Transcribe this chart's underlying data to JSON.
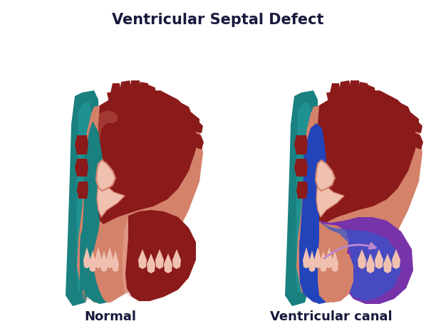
{
  "title": "Ventricular Septal Defect",
  "label_normal": "Normal",
  "label_defect": "Ventricular canal",
  "bg_color": "#ffffff",
  "title_color": "#1a1a3e",
  "label_color": "#1a1a3e",
  "title_fontsize": 15,
  "label_fontsize": 13,
  "c_teal": "#1a8080",
  "c_teal_dark": "#156868",
  "c_teal_light": "#2aacac",
  "c_red_dark": "#8B1A1A",
  "c_red_med": "#9B2020",
  "c_salmon": "#D4826A",
  "c_pink": "#E8A898",
  "c_pink_light": "#F0C0B0",
  "c_blue": "#2244BB",
  "c_blue_med": "#3355CC",
  "c_purple": "#7733AA",
  "c_purple_light": "#9944CC",
  "c_arrow": "#BB88CC"
}
